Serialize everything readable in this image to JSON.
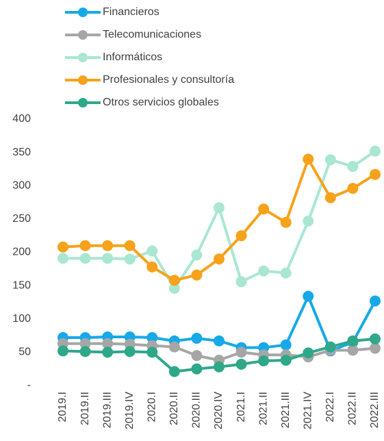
{
  "chart_data": {
    "type": "line",
    "categories": [
      "2019.I",
      "2019.II",
      "2019.III",
      "2019.IV",
      "2020.I",
      "2020.II",
      "2020.III",
      "2020.IV",
      "2021.I",
      "2021.II",
      "2021.III",
      "2021.IV",
      "2022.I",
      "2022.II",
      "2022.III"
    ],
    "series": [
      {
        "name": "Financieros",
        "color": "#16a9e8",
        "values": [
          72,
          72,
          73,
          73,
          72,
          67,
          71,
          67,
          57,
          57,
          61,
          134,
          52,
          65,
          127
        ]
      },
      {
        "name": "Telecomunicaciones",
        "color": "#a6a6a6",
        "values": [
          63,
          63,
          63,
          62,
          60,
          58,
          45,
          38,
          50,
          46,
          46,
          43,
          53,
          53,
          56
        ]
      },
      {
        "name": "Informáticos",
        "color": "#a9e7d2",
        "values": [
          191,
          191,
          191,
          190,
          202,
          146,
          196,
          267,
          156,
          172,
          169,
          247,
          339,
          329,
          352
        ]
      },
      {
        "name": "Profesionales y consultoría",
        "color": "#f7a21b",
        "values": [
          208,
          210,
          210,
          210,
          178,
          158,
          166,
          190,
          225,
          265,
          245,
          340,
          282,
          296,
          317
        ]
      },
      {
        "name": "Otros servicios globales",
        "color": "#2fa88a",
        "values": [
          52,
          51,
          50,
          51,
          50,
          21,
          25,
          28,
          32,
          37,
          38,
          49,
          58,
          67,
          70
        ]
      }
    ],
    "ylim": [
      0,
      400
    ],
    "yticks": [
      {
        "value": 0,
        "label": "-"
      },
      50,
      100,
      150,
      200,
      250,
      300,
      350,
      400
    ],
    "legend": "top"
  }
}
